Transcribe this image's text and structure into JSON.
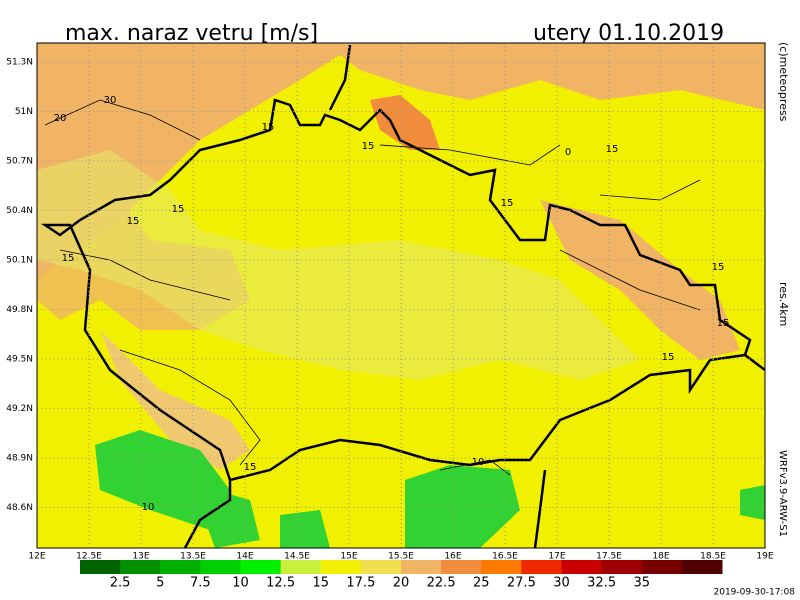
{
  "header": {
    "title": "max. naraz vetru [m/s]",
    "date": "utery 01.10.2019"
  },
  "side": {
    "copyright": "(c)meteopress",
    "resolution": "res.4km",
    "model": "WRFv3.9-ARW-S1",
    "run": "2019-09-30-17:08"
  },
  "lat_labels": [
    "51.3N",
    "51N",
    "50.7N",
    "50.4N",
    "50.1N",
    "49.8N",
    "49.5N",
    "49.2N",
    "48.9N",
    "48.6N"
  ],
  "lon_labels": [
    "12E",
    "12.5E",
    "13E",
    "13.5E",
    "14E",
    "14.5E",
    "15E",
    "15.5E",
    "16E",
    "16.5E",
    "17E",
    "17.5E",
    "18E",
    "18.5E",
    "19E"
  ],
  "colorbar": {
    "colors": [
      "#006400",
      "#009000",
      "#00b000",
      "#00d000",
      "#00f000",
      "#c8f03c",
      "#f0f000",
      "#f0e050",
      "#f0b464",
      "#f08c3c",
      "#ff7800",
      "#f02800",
      "#c80000",
      "#a00000",
      "#780000",
      "#500000"
    ],
    "labels": [
      "2.5",
      "5",
      "7.5",
      "10",
      "12.5",
      "15",
      "17.5",
      "20",
      "22.5",
      "25",
      "27.5",
      "30",
      "32.5",
      "35"
    ]
  },
  "contour_labels": [
    "20",
    "30",
    "15",
    "15",
    "15",
    "15",
    "15",
    "0",
    "15",
    "15",
    "15",
    "15",
    "15",
    "10",
    "10",
    "15"
  ]
}
